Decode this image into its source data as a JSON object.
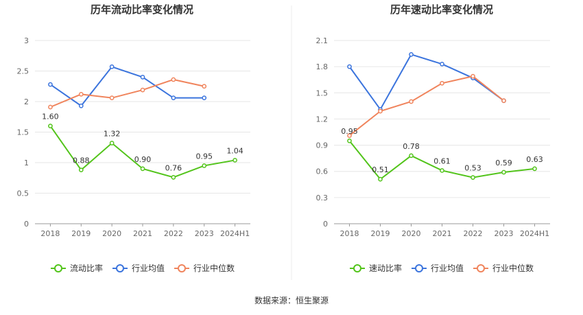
{
  "source_label": "数据来源：恒生聚源",
  "legend_colors": {
    "ratio": "#52c41a",
    "industry_avg": "#3b74dd",
    "industry_median": "#f0845c"
  },
  "chart_data": [
    {
      "type": "line",
      "title": "历年流动比率变化情况",
      "categories": [
        "2018",
        "2019",
        "2020",
        "2021",
        "2022",
        "2023",
        "2024H1"
      ],
      "ylim": [
        0,
        3
      ],
      "yticks": [
        "0",
        "0.5",
        "1",
        "1.5",
        "2",
        "2.5",
        "3"
      ],
      "ytick_values": [
        0,
        0.5,
        1,
        1.5,
        2,
        2.5,
        3
      ],
      "grid": true,
      "legend_position": "bottom",
      "series": [
        {
          "key": "ratio",
          "name": "流动比率",
          "color": "#52c41a",
          "values": [
            1.6,
            0.88,
            1.32,
            0.9,
            0.76,
            0.95,
            1.04
          ],
          "labels": [
            "1.60",
            "0.88",
            "1.32",
            "0.90",
            "0.76",
            "0.95",
            "1.04"
          ]
        },
        {
          "key": "avg",
          "name": "行业均值",
          "color": "#3b74dd",
          "values": [
            2.28,
            1.93,
            2.57,
            2.4,
            2.06,
            2.06,
            null
          ]
        },
        {
          "key": "median",
          "name": "行业中位数",
          "color": "#f0845c",
          "values": [
            1.91,
            2.12,
            2.06,
            2.19,
            2.36,
            2.25,
            null
          ]
        }
      ]
    },
    {
      "type": "line",
      "title": "历年速动比率变化情况",
      "categories": [
        "2018",
        "2019",
        "2020",
        "2021",
        "2022",
        "2023",
        "2024H1"
      ],
      "ylim": [
        0,
        2.1
      ],
      "yticks": [
        "0",
        "0.3",
        "0.6",
        "0.9",
        "1.2",
        "1.5",
        "1.8",
        "2.1"
      ],
      "ytick_values": [
        0,
        0.3,
        0.6,
        0.9,
        1.2,
        1.5,
        1.8,
        2.1
      ],
      "grid": true,
      "legend_position": "bottom",
      "series": [
        {
          "key": "ratio",
          "name": "速动比率",
          "color": "#52c41a",
          "values": [
            0.95,
            0.51,
            0.78,
            0.61,
            0.53,
            0.59,
            0.63
          ],
          "labels": [
            "0.95",
            "0.51",
            "0.78",
            "0.61",
            "0.53",
            "0.59",
            "0.63"
          ]
        },
        {
          "key": "avg",
          "name": "行业均值",
          "color": "#3b74dd",
          "values": [
            1.8,
            1.31,
            1.94,
            1.83,
            1.67,
            1.41,
            null
          ]
        },
        {
          "key": "median",
          "name": "行业中位数",
          "color": "#f0845c",
          "values": [
            1.01,
            1.29,
            1.4,
            1.61,
            1.69,
            1.41,
            null
          ]
        }
      ]
    }
  ]
}
